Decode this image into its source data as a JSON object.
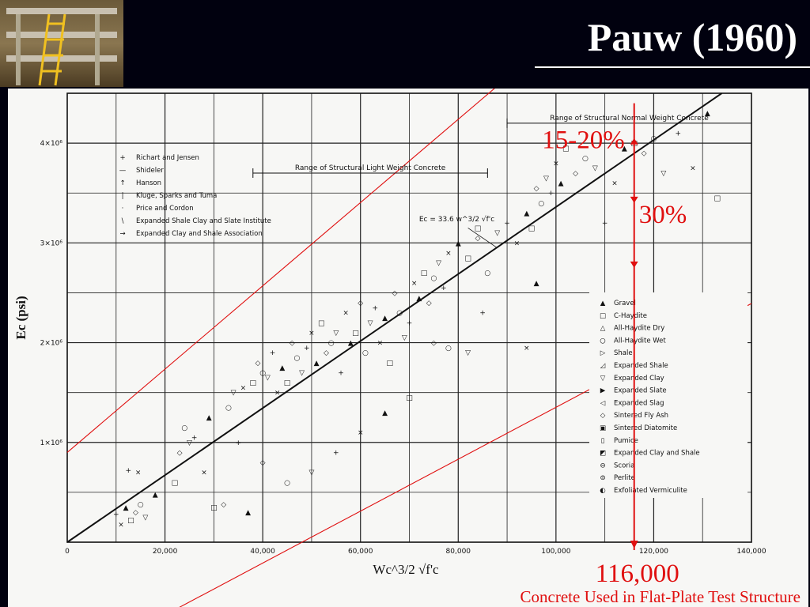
{
  "slide": {
    "title": "Pauw (1960)"
  },
  "annotations": {
    "band_inner_label": "15-20%",
    "band_outer_label": "30%",
    "marker_value": "116,000",
    "marker_caption": "Concrete Used in Flat-Plate Test Structure",
    "accent_color": "#e01010"
  },
  "chart_data": {
    "type": "scatter",
    "title": "",
    "xlabel": "Wc^3/2 √f'c",
    "ylabel": "Ec (psi)",
    "xlim": [
      0,
      140000
    ],
    "ylim": [
      0,
      4500000
    ],
    "x_ticks": [
      {
        "v": 0,
        "label": "0"
      },
      {
        "v": 20000,
        "label": "20,000"
      },
      {
        "v": 40000,
        "label": "40,000"
      },
      {
        "v": 60000,
        "label": "60,000"
      },
      {
        "v": 80000,
        "label": "80,000"
      },
      {
        "v": 100000,
        "label": "100,000"
      },
      {
        "v": 120000,
        "label": "120,000"
      },
      {
        "v": 140000,
        "label": "140,000"
      }
    ],
    "y_ticks": [
      {
        "v": 1000000,
        "label": "1×10⁶"
      },
      {
        "v": 2000000,
        "label": "2×10⁶"
      },
      {
        "v": 3000000,
        "label": "3×10⁶"
      },
      {
        "v": 4000000,
        "label": "4×10⁶"
      }
    ],
    "grid": true,
    "fit_line": {
      "label": "Ec = 33.6 w^3/2 √f'c",
      "slope": 33.6
    },
    "ranges": [
      {
        "label": "Range of Structural Light Weight Concrete",
        "x0": 38000,
        "x1": 86000
      },
      {
        "label": "Range of Structural Normal Weight Concrete",
        "x0": 90000,
        "x1": 140000
      }
    ],
    "legend_researchers": [
      "Richart and Jensen",
      "Shideler",
      "Hanson",
      "Kluge, Sparks and Tuma",
      "Price and Cordon",
      "Expanded Shale Clay and Slate Institute",
      "Expanded Clay and Shale Association"
    ],
    "legend_aggregates": [
      "Gravel",
      "C-Haydite",
      "All-Haydite Dry",
      "All-Haydite Wet",
      "Shale",
      "Expanded Shale",
      "Expanded Clay",
      "Expanded Slate",
      "Expanded Slag",
      "Sintered Fly Ash",
      "Sintered Diatomite",
      "Pumice",
      "Expanded Clay and Shale",
      "Scoria",
      "Perlite",
      "Exfoliated Vermiculite"
    ],
    "series": [
      {
        "points": [
          [
            10000,
            280000
          ],
          [
            11000,
            180000
          ],
          [
            12000,
            350000
          ],
          [
            13000,
            220000
          ],
          [
            14000,
            300000
          ],
          [
            15000,
            380000
          ],
          [
            16000,
            250000
          ],
          [
            12500,
            720000
          ],
          [
            14500,
            700000
          ],
          [
            18000,
            480000
          ],
          [
            22000,
            600000
          ],
          [
            23000,
            900000
          ],
          [
            24000,
            1150000
          ],
          [
            25000,
            1000000
          ],
          [
            26000,
            1050000
          ],
          [
            28000,
            700000
          ],
          [
            29000,
            1250000
          ],
          [
            30000,
            350000
          ],
          [
            32000,
            380000
          ],
          [
            33000,
            1350000
          ],
          [
            34000,
            1500000
          ],
          [
            35000,
            1000000
          ],
          [
            36000,
            1550000
          ],
          [
            37000,
            300000
          ],
          [
            38000,
            1600000
          ],
          [
            39000,
            1800000
          ],
          [
            40000,
            1700000
          ],
          [
            41000,
            1650000
          ],
          [
            42000,
            1900000
          ],
          [
            43000,
            1500000
          ],
          [
            44000,
            1750000
          ],
          [
            45000,
            1600000
          ],
          [
            46000,
            2000000
          ],
          [
            47000,
            1850000
          ],
          [
            48000,
            1700000
          ],
          [
            49000,
            1950000
          ],
          [
            50000,
            2100000
          ],
          [
            51000,
            1800000
          ],
          [
            52000,
            2200000
          ],
          [
            53000,
            1900000
          ],
          [
            54000,
            2000000
          ],
          [
            55000,
            2100000
          ],
          [
            56000,
            1700000
          ],
          [
            57000,
            2300000
          ],
          [
            58000,
            2000000
          ],
          [
            59000,
            2100000
          ],
          [
            60000,
            2400000
          ],
          [
            61000,
            1900000
          ],
          [
            62000,
            2200000
          ],
          [
            63000,
            2350000
          ],
          [
            64000,
            2000000
          ],
          [
            65000,
            2250000
          ],
          [
            66000,
            1800000
          ],
          [
            67000,
            2500000
          ],
          [
            68000,
            2300000
          ],
          [
            69000,
            2050000
          ],
          [
            70000,
            2200000
          ],
          [
            71000,
            2600000
          ],
          [
            72000,
            2450000
          ],
          [
            73000,
            2700000
          ],
          [
            74000,
            2400000
          ],
          [
            75000,
            2650000
          ],
          [
            76000,
            2800000
          ],
          [
            77000,
            2550000
          ],
          [
            78000,
            2900000
          ],
          [
            80000,
            3000000
          ],
          [
            82000,
            2850000
          ],
          [
            84000,
            3050000
          ],
          [
            86000,
            2700000
          ],
          [
            88000,
            3100000
          ],
          [
            90000,
            3200000
          ],
          [
            92000,
            3000000
          ],
          [
            94000,
            3300000
          ],
          [
            95000,
            3150000
          ],
          [
            96000,
            3550000
          ],
          [
            97000,
            3400000
          ],
          [
            98000,
            3650000
          ],
          [
            99000,
            3500000
          ],
          [
            100000,
            3800000
          ],
          [
            101000,
            3600000
          ],
          [
            102000,
            3950000
          ],
          [
            104000,
            3700000
          ],
          [
            106000,
            3850000
          ],
          [
            108000,
            3750000
          ],
          [
            110000,
            3200000
          ],
          [
            112000,
            3600000
          ],
          [
            114000,
            3950000
          ],
          [
            116000,
            4000000
          ],
          [
            118000,
            3900000
          ],
          [
            120000,
            4050000
          ],
          [
            122000,
            3700000
          ],
          [
            125000,
            4100000
          ],
          [
            128000,
            3750000
          ],
          [
            131000,
            4300000
          ],
          [
            133000,
            3450000
          ],
          [
            40000,
            800000
          ],
          [
            45000,
            600000
          ],
          [
            50000,
            700000
          ],
          [
            55000,
            900000
          ],
          [
            60000,
            1100000
          ],
          [
            65000,
            1300000
          ],
          [
            70000,
            1450000
          ],
          [
            75000,
            2000000
          ],
          [
            78000,
            1950000
          ],
          [
            82000,
            1900000
          ],
          [
            85000,
            2300000
          ],
          [
            94000,
            1950000
          ],
          [
            96000,
            2600000
          ],
          [
            84000,
            3150000
          ]
        ]
      }
    ]
  }
}
